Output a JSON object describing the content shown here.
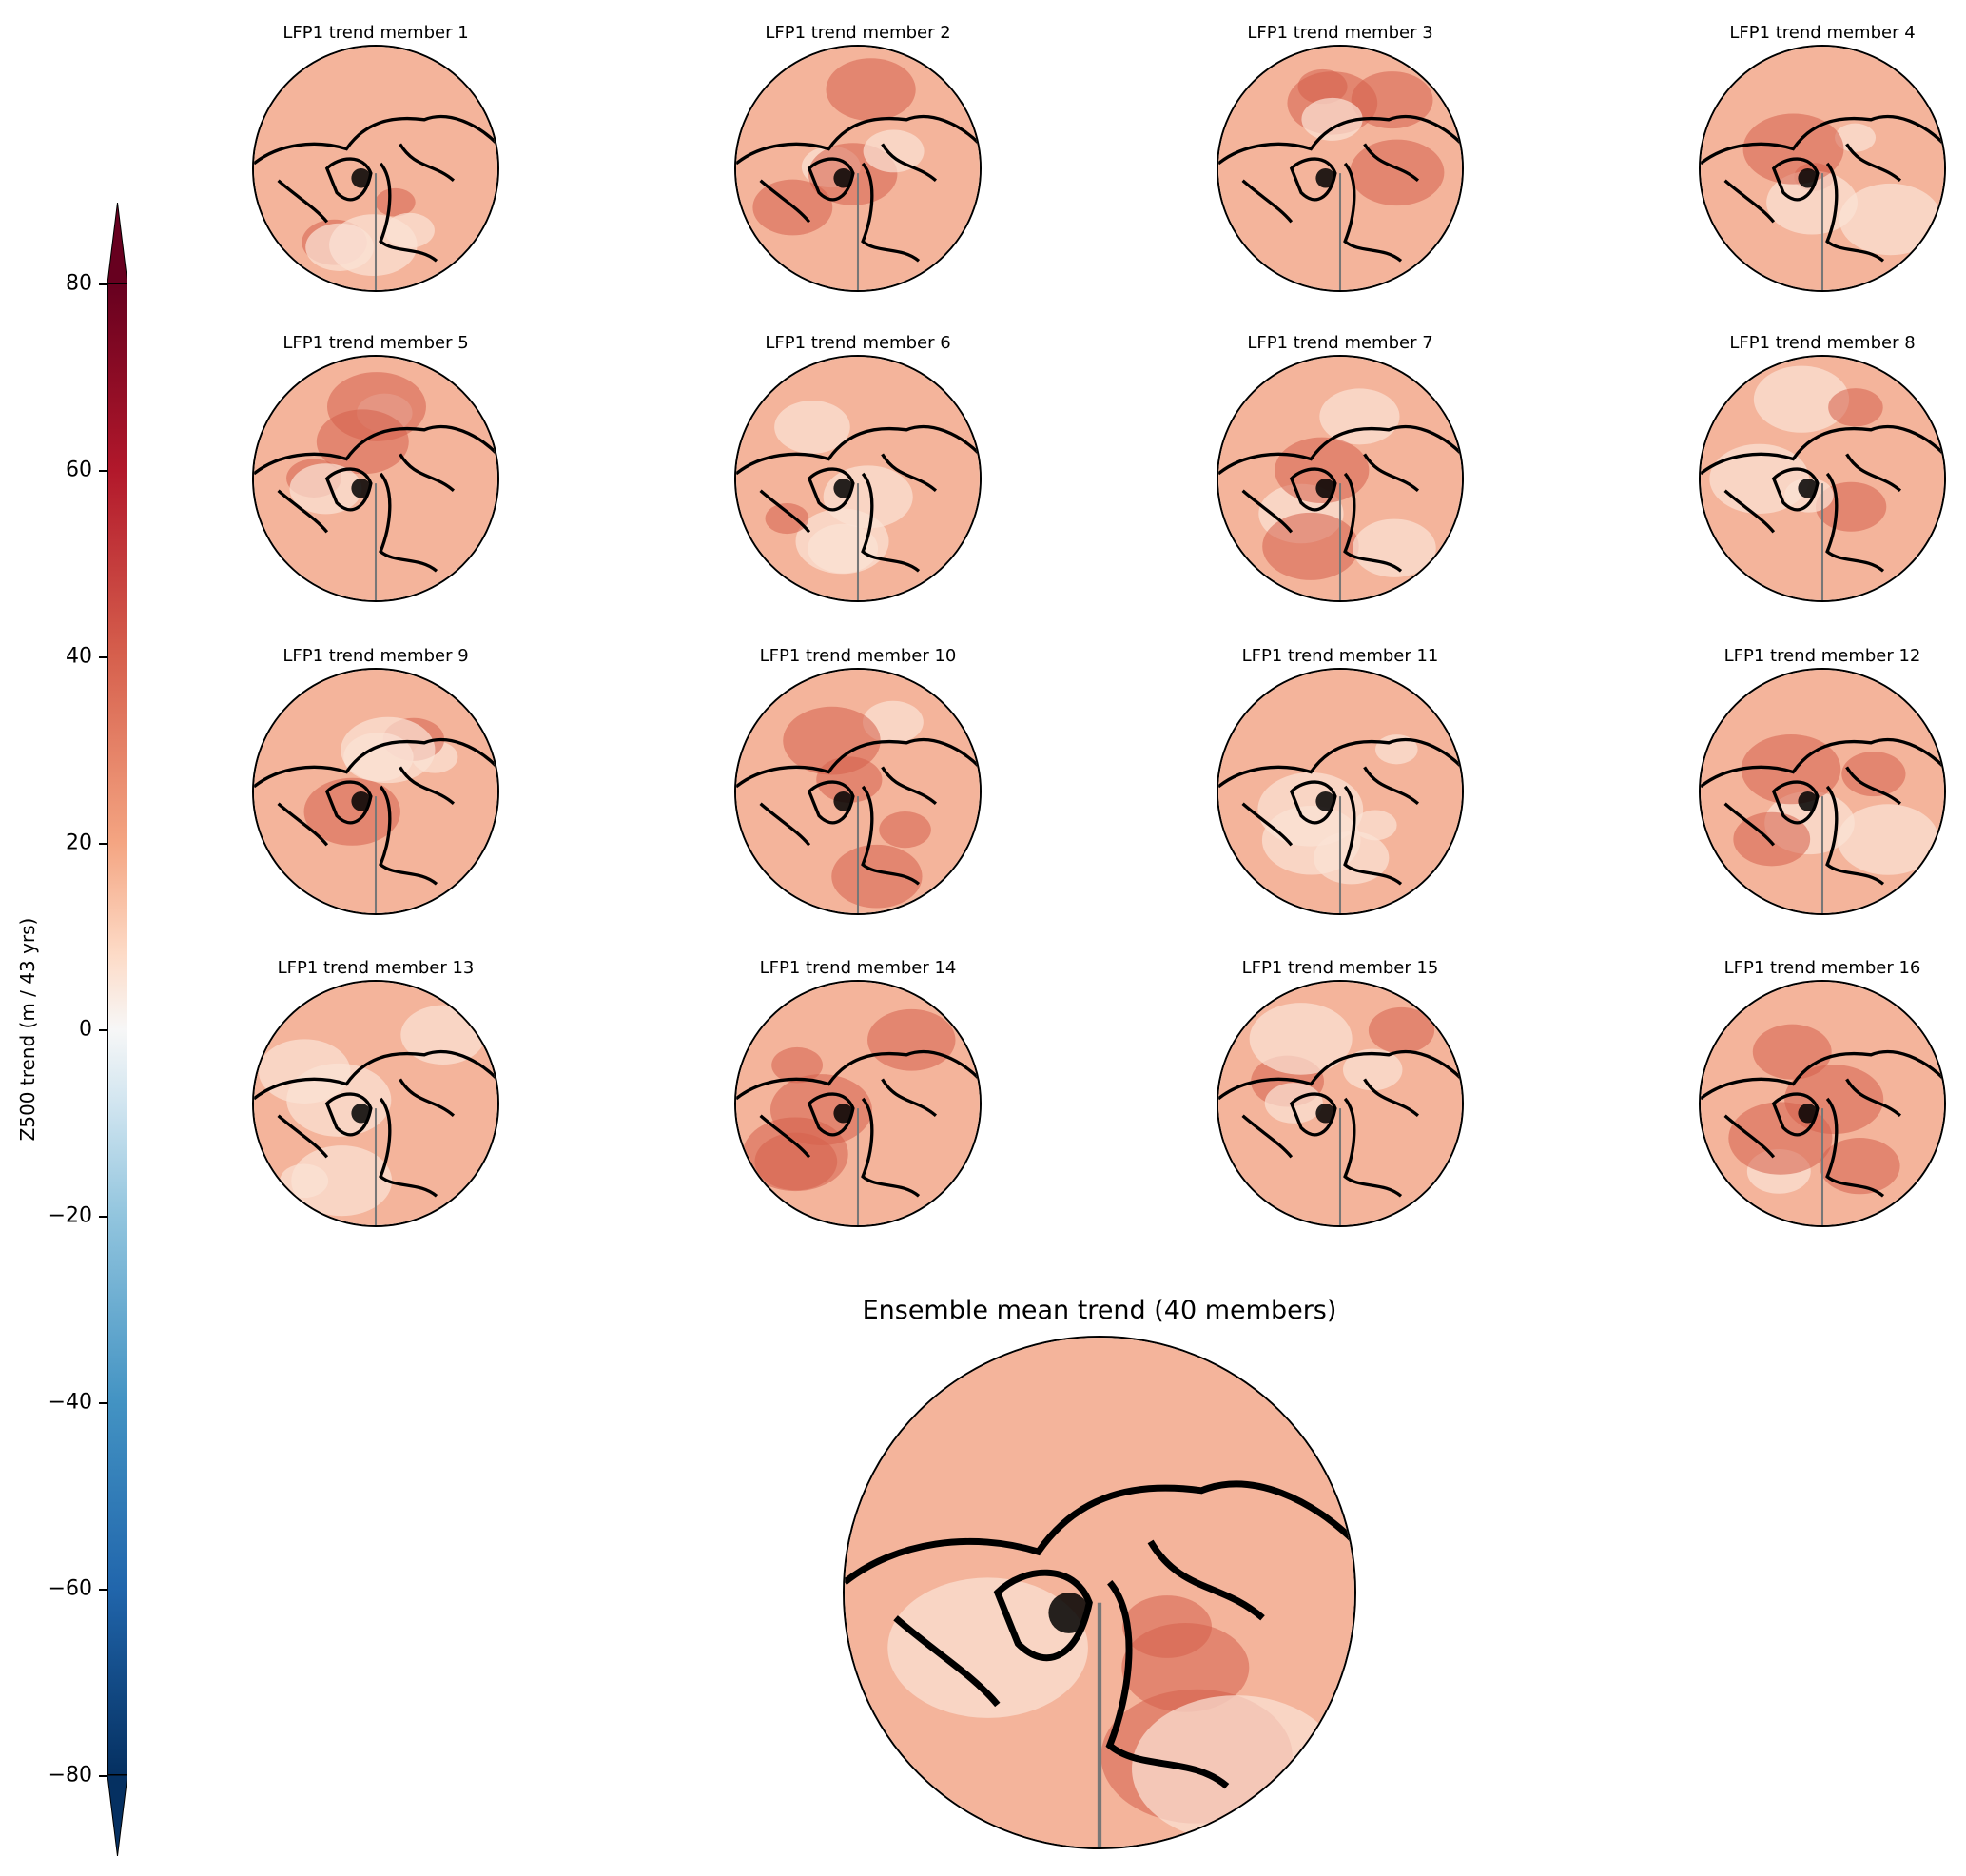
{
  "chart_data": {
    "type": "heatmap",
    "projection": "north-polar-stereographic",
    "colorbar": {
      "label": "Z500 trend (m / 43 yrs)",
      "ticks": [
        80,
        60,
        40,
        20,
        0,
        -20,
        -40,
        -60,
        -80
      ],
      "tick_labels": [
        "80",
        "60",
        "40",
        "20",
        "0",
        "−20",
        "−40",
        "−60",
        "−80"
      ],
      "range": [
        -80,
        80
      ],
      "extend": "both",
      "colormap": "RdBu_r"
    },
    "panels": [
      {
        "title": "LFP1 trend member 1"
      },
      {
        "title": "LFP1 trend member 2"
      },
      {
        "title": "LFP1 trend member 3"
      },
      {
        "title": "LFP1 trend member 4"
      },
      {
        "title": "LFP1 trend member 5"
      },
      {
        "title": "LFP1 trend member 6"
      },
      {
        "title": "LFP1 trend member 7"
      },
      {
        "title": "LFP1 trend member 8"
      },
      {
        "title": "LFP1 trend member 9"
      },
      {
        "title": "LFP1 trend member 10"
      },
      {
        "title": "LFP1 trend member 11"
      },
      {
        "title": "LFP1 trend member 12"
      },
      {
        "title": "LFP1 trend member 13"
      },
      {
        "title": "LFP1 trend member 14"
      },
      {
        "title": "LFP1 trend member 15"
      },
      {
        "title": "LFP1 trend member 16"
      }
    ],
    "ensemble_mean": {
      "title": "Ensemble mean trend (40 members)"
    }
  }
}
